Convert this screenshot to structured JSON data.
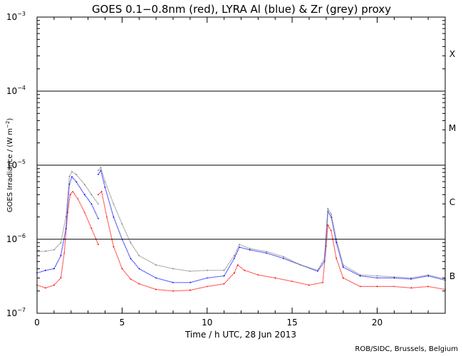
{
  "chart_data": {
    "type": "line",
    "title": "GOES 0.1−0.8nm (red), LYRA Al (blue) & Zr (grey) proxy",
    "ylabel_text": "GOES Irradiance / (W m",
    "ylabel_superscript": "−2",
    "ylabel_close": ")",
    "xlabel": "Time / h UTC, 28 Jun 2013",
    "credit": "ROB/SIDC, Brussels, Belgium",
    "yscale": "log",
    "ylim": [
      1e-07,
      0.001
    ],
    "xlim": [
      0,
      24
    ],
    "x_ticks": [
      {
        "value": 0,
        "label": "0"
      },
      {
        "value": 5,
        "label": "5"
      },
      {
        "value": 10,
        "label": "10"
      },
      {
        "value": 15,
        "label": "15"
      },
      {
        "value": 20,
        "label": "20"
      }
    ],
    "y_ticks": [
      {
        "exp": -7,
        "base": "10",
        "sup": "−7"
      },
      {
        "exp": -6,
        "base": "10",
        "sup": "−6"
      },
      {
        "exp": -5,
        "base": "10",
        "sup": "−5"
      },
      {
        "exp": -4,
        "base": "10",
        "sup": "−4"
      },
      {
        "exp": -3,
        "base": "10",
        "sup": "−3"
      }
    ],
    "flare_class_lines": [
      1e-06,
      1e-05,
      0.0001
    ],
    "flare_classes": [
      {
        "label": "B",
        "log_center": -6.5
      },
      {
        "label": "C",
        "log_center": -5.5
      },
      {
        "label": "M",
        "log_center": -4.5
      },
      {
        "label": "X",
        "log_center": -3.5
      }
    ],
    "series": [
      {
        "name": "GOES 0.1-0.8nm",
        "color": "#ff0000",
        "points": [
          [
            0,
            2.4e-07
          ],
          [
            0.5,
            2.2e-07
          ],
          [
            1.0,
            2.4e-07
          ],
          [
            1.4,
            3e-07
          ],
          [
            1.6,
            6.5e-07
          ],
          [
            1.8,
            2.3e-06
          ],
          [
            1.95,
            4e-06
          ],
          [
            2.1,
            4.4e-06
          ],
          [
            2.4,
            3.5e-06
          ],
          [
            2.8,
            2.3e-06
          ],
          [
            3.2,
            1.4e-06
          ],
          [
            3.6,
            8.5e-07
          ],
          [
            3.6,
            4e-06
          ],
          [
            3.8,
            4.4e-06
          ],
          [
            4.1,
            2e-06
          ],
          [
            4.5,
            8e-07
          ],
          [
            5.0,
            4e-07
          ],
          [
            5.5,
            2.9e-07
          ],
          [
            6.0,
            2.5e-07
          ],
          [
            7.0,
            2.1e-07
          ],
          [
            8.0,
            2e-07
          ],
          [
            9.0,
            2.05e-07
          ],
          [
            10.0,
            2.3e-07
          ],
          [
            11.0,
            2.5e-07
          ],
          [
            11.6,
            3.5e-07
          ],
          [
            11.8,
            4.5e-07
          ],
          [
            12.2,
            3.8e-07
          ],
          [
            13.0,
            3.3e-07
          ],
          [
            14.0,
            3e-07
          ],
          [
            15.0,
            2.7e-07
          ],
          [
            16.0,
            2.4e-07
          ],
          [
            16.8,
            2.6e-07
          ],
          [
            17.0,
            8e-07
          ],
          [
            17.1,
            1.55e-06
          ],
          [
            17.3,
            1.3e-06
          ],
          [
            17.6,
            5.5e-07
          ],
          [
            18.0,
            3e-07
          ],
          [
            19.0,
            2.3e-07
          ],
          [
            20.0,
            2.3e-07
          ],
          [
            21.0,
            2.3e-07
          ],
          [
            22.0,
            2.2e-07
          ],
          [
            23.0,
            2.3e-07
          ],
          [
            24.0,
            2.1e-07
          ]
        ]
      },
      {
        "name": "LYRA Al proxy",
        "color": "#0000ff",
        "points": [
          [
            0,
            3.5e-07
          ],
          [
            0.5,
            3.8e-07
          ],
          [
            1.0,
            4e-07
          ],
          [
            1.4,
            6e-07
          ],
          [
            1.7,
            1.4e-06
          ],
          [
            1.9,
            5.5e-06
          ],
          [
            2.05,
            7e-06
          ],
          [
            2.3,
            6e-06
          ],
          [
            2.8,
            4e-06
          ],
          [
            3.2,
            3e-06
          ],
          [
            3.6,
            1.9e-06
          ],
          [
            3.6,
            7.5e-06
          ],
          [
            3.75,
            8.5e-06
          ],
          [
            4.0,
            5e-06
          ],
          [
            4.5,
            2e-06
          ],
          [
            5.0,
            1e-06
          ],
          [
            5.5,
            5.5e-07
          ],
          [
            6.0,
            4e-07
          ],
          [
            7.0,
            3e-07
          ],
          [
            8.0,
            2.6e-07
          ],
          [
            9.0,
            2.6e-07
          ],
          [
            10.0,
            3e-07
          ],
          [
            11.0,
            3.2e-07
          ],
          [
            11.6,
            5.5e-07
          ],
          [
            11.9,
            7.8e-07
          ],
          [
            12.5,
            7.2e-07
          ],
          [
            13.5,
            6.5e-07
          ],
          [
            14.5,
            5.5e-07
          ],
          [
            15.5,
            4.5e-07
          ],
          [
            16.5,
            3.7e-07
          ],
          [
            16.9,
            5e-07
          ],
          [
            17.1,
            2.4e-06
          ],
          [
            17.3,
            2e-06
          ],
          [
            17.6,
            9e-07
          ],
          [
            18.0,
            4.2e-07
          ],
          [
            19.0,
            3.2e-07
          ],
          [
            20.0,
            3e-07
          ],
          [
            21.0,
            3e-07
          ],
          [
            22.0,
            2.9e-07
          ],
          [
            23.0,
            3.2e-07
          ],
          [
            24.0,
            2.8e-07
          ]
        ]
      },
      {
        "name": "LYRA Zr proxy",
        "color": "#808080",
        "points": [
          [
            0,
            6.8e-07
          ],
          [
            0.5,
            6.9e-07
          ],
          [
            1.0,
            7.2e-07
          ],
          [
            1.4,
            9e-07
          ],
          [
            1.7,
            2e-06
          ],
          [
            1.9,
            7e-06
          ],
          [
            2.05,
            8.2e-06
          ],
          [
            2.3,
            7.5e-06
          ],
          [
            2.8,
            5.5e-06
          ],
          [
            3.2,
            4e-06
          ],
          [
            3.6,
            3e-06
          ],
          [
            3.6,
            8.5e-06
          ],
          [
            3.75,
            9.3e-06
          ],
          [
            4.0,
            6e-06
          ],
          [
            4.5,
            3e-06
          ],
          [
            5.0,
            1.6e-06
          ],
          [
            5.5,
            9e-07
          ],
          [
            6.0,
            6e-07
          ],
          [
            7.0,
            4.5e-07
          ],
          [
            8.0,
            4e-07
          ],
          [
            9.0,
            3.7e-07
          ],
          [
            10.0,
            3.8e-07
          ],
          [
            11.0,
            3.8e-07
          ],
          [
            11.6,
            6e-07
          ],
          [
            11.9,
            8.5e-07
          ],
          [
            12.5,
            7.5e-07
          ],
          [
            13.5,
            6.8e-07
          ],
          [
            14.5,
            5.8e-07
          ],
          [
            15.5,
            4.5e-07
          ],
          [
            16.5,
            3.8e-07
          ],
          [
            16.9,
            5.5e-07
          ],
          [
            17.1,
            2.6e-06
          ],
          [
            17.3,
            2.2e-06
          ],
          [
            17.6,
            1e-06
          ],
          [
            18.0,
            4.5e-07
          ],
          [
            19.0,
            3.3e-07
          ],
          [
            20.0,
            3.2e-07
          ],
          [
            21.0,
            3.1e-07
          ],
          [
            22.0,
            3e-07
          ],
          [
            23.0,
            3.3e-07
          ],
          [
            24.0,
            2.9e-07
          ]
        ]
      }
    ]
  }
}
